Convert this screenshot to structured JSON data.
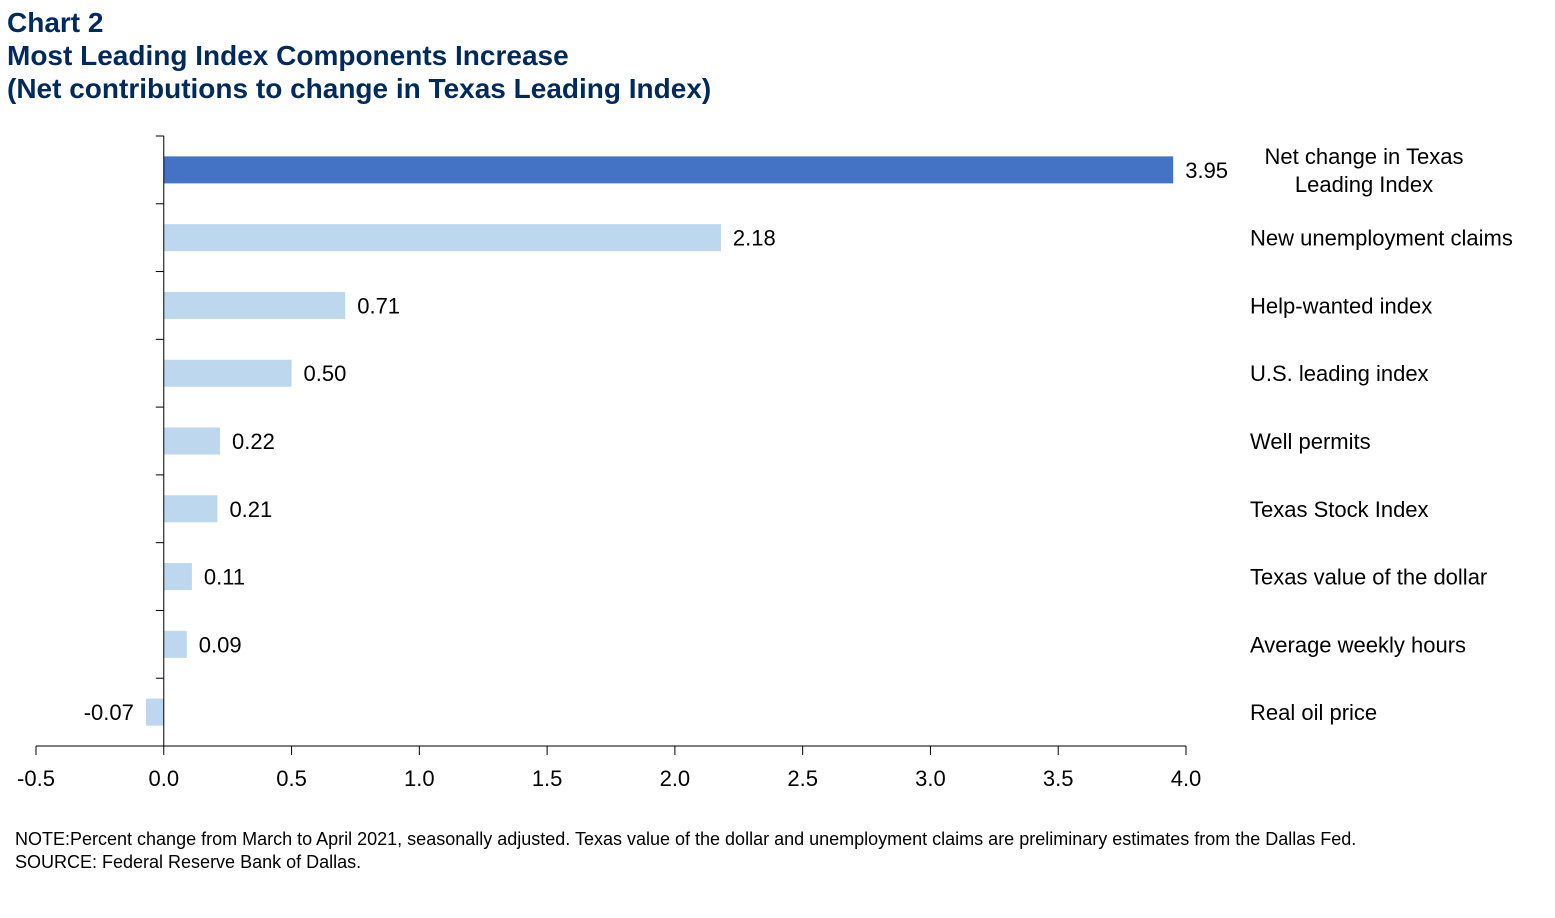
{
  "header": {
    "chart_number": "Chart 2",
    "title": "Most Leading Index Components Increase",
    "subtitle": "(Net contributions to change in Texas Leading Index)"
  },
  "chart_data": {
    "type": "bar",
    "orientation": "horizontal",
    "title": "Most Leading Index Components Increase",
    "subtitle": "(Net contributions to change in Texas Leading Index)",
    "categories": [
      [
        "Net change in Texas",
        "Leading Index"
      ],
      [
        "New unemployment claims"
      ],
      [
        "Help-wanted index"
      ],
      [
        "U.S. leading index"
      ],
      [
        "Well permits"
      ],
      [
        "Texas Stock Index"
      ],
      [
        "Texas value of the dollar"
      ],
      [
        "Average weekly hours"
      ],
      [
        "Real oil price"
      ]
    ],
    "values": [
      3.95,
      2.18,
      0.71,
      0.5,
      0.22,
      0.21,
      0.11,
      0.09,
      -0.07
    ],
    "value_labels": [
      "3.95",
      "2.18",
      "0.71",
      "0.50",
      "0.22",
      "0.21",
      "0.11",
      "0.09",
      "-0.07"
    ],
    "highlight_index": 0,
    "colors": {
      "highlight": "#4472c4",
      "bar": "#bdd7ee",
      "axis": "#000000",
      "title": "#002a5c"
    },
    "xlim": [
      -0.5,
      4.0
    ],
    "xticks": [
      -0.5,
      0.0,
      0.5,
      1.0,
      1.5,
      2.0,
      2.5,
      3.0,
      3.5,
      4.0
    ],
    "xtick_labels": [
      "-0.5",
      "0.0",
      "0.5",
      "1.0",
      "1.5",
      "2.0",
      "2.5",
      "3.0",
      "3.5",
      "4.0"
    ],
    "xlabel": "",
    "ylabel": "",
    "grid": false,
    "legend": "none"
  },
  "footer": {
    "note": "NOTE:Percent change from March to April 2021, seasonally adjusted. Texas value of the dollar and unemployment  claims are preliminary estimates from the Dallas Fed.",
    "source": "SOURCE: Federal Reserve Bank of Dallas."
  }
}
